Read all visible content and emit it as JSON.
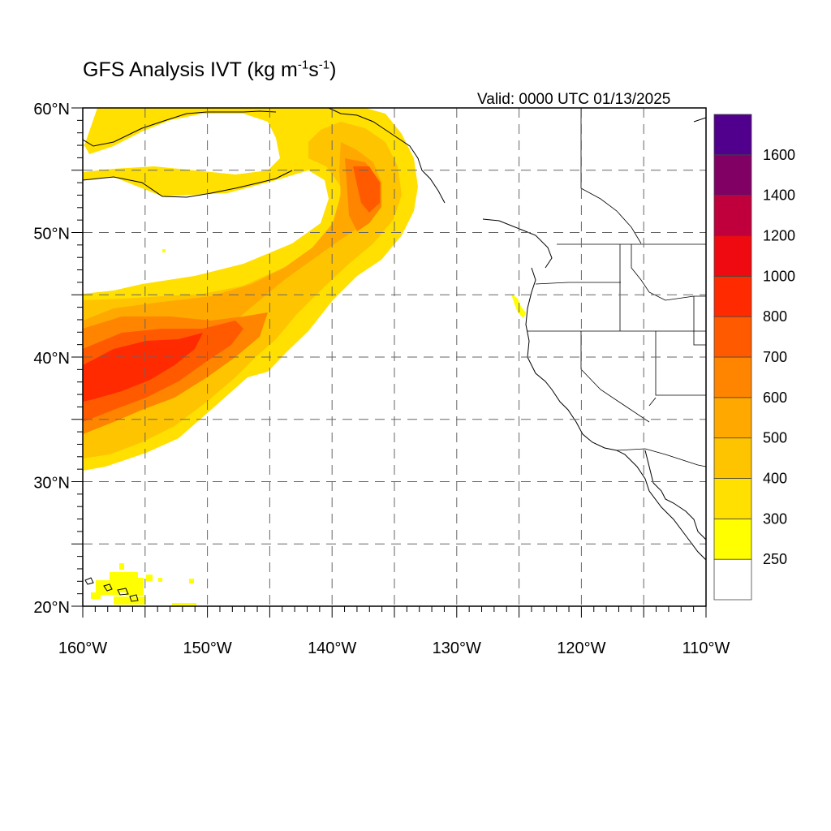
{
  "figure": {
    "title_main": "GFS Analysis IVT (kg m",
    "title_exp1": "-1",
    "title_mid": "s",
    "title_exp2": "-1",
    "title_end": ")",
    "valid_text": "Valid: 0000 UTC 01/13/2025"
  },
  "map": {
    "lon_range": [
      -160,
      -110
    ],
    "lat_range": [
      20,
      60
    ],
    "lon_ticks": [
      {
        "value": -160,
        "label": "160°W"
      },
      {
        "value": -150,
        "label": "150°W"
      },
      {
        "value": -140,
        "label": "140°W"
      },
      {
        "value": -130,
        "label": "130°W"
      },
      {
        "value": -120,
        "label": "120°W"
      },
      {
        "value": -110,
        "label": "110°W"
      }
    ],
    "lat_ticks": [
      {
        "value": 20,
        "label": "20°N"
      },
      {
        "value": 30,
        "label": "30°N"
      },
      {
        "value": 40,
        "label": "40°N"
      },
      {
        "value": 50,
        "label": "50°N"
      },
      {
        "value": 60,
        "label": "60°N"
      }
    ],
    "grid": "dashed, every 5°",
    "colorbar": {
      "levels": [
        "250",
        "300",
        "400",
        "500",
        "600",
        "700",
        "800",
        "1000",
        "1200",
        "1400",
        "1600"
      ],
      "colors": [
        "#ffffff",
        "#ffff00",
        "#ffe000",
        "#ffc400",
        "#ffa800",
        "#ff8400",
        "#ff5a00",
        "#ff2a00",
        "#ee0a10",
        "#c0003c",
        "#800064",
        "#50008c"
      ]
    },
    "colors": {
      "level_300": "#ffff00",
      "level_400": "#ffe000",
      "level_500": "#ffc400",
      "level_600": "#ffa800",
      "level_700": "#ff8400",
      "level_800": "#ff5a00",
      "level_1000": "#ff2a00"
    }
  }
}
